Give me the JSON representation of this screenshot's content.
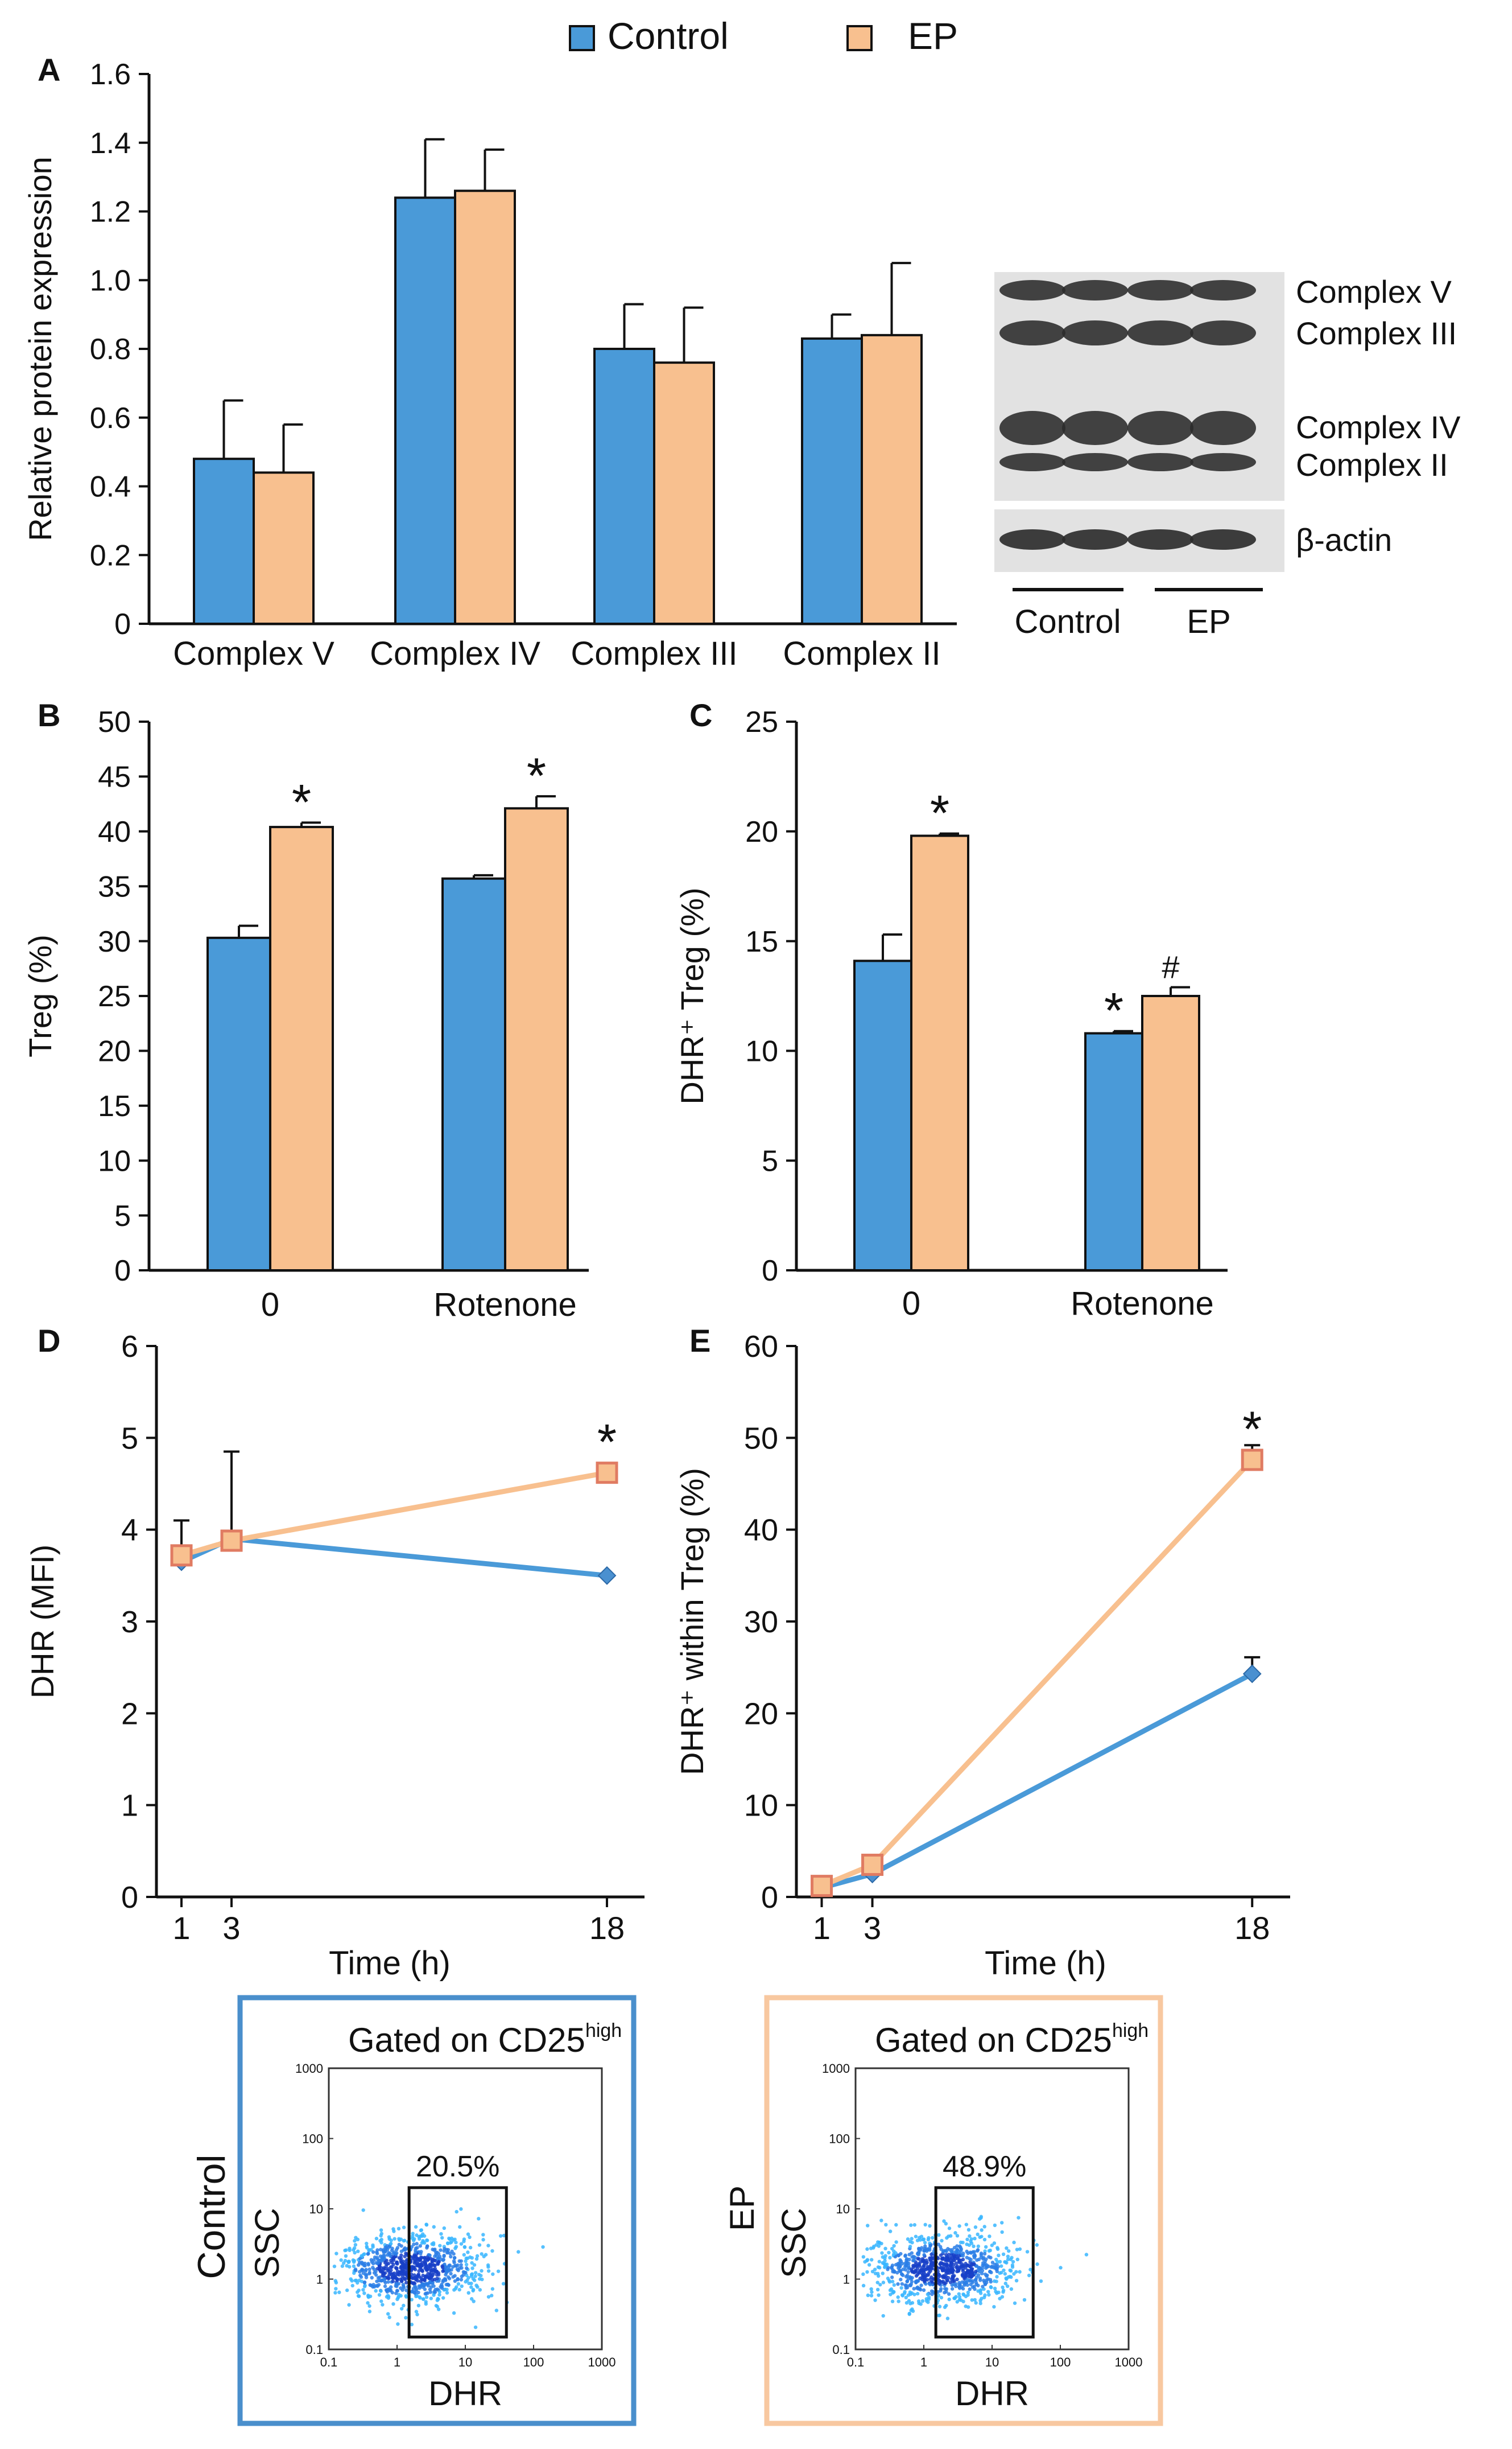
{
  "legend": {
    "control": "Control",
    "ep": "EP",
    "control_color": "#4a9ad8",
    "ep_color": "#f8c08f"
  },
  "colors": {
    "control": "#4a9ad8",
    "ep": "#f8c08f",
    "ep_marker_edge": "#e07b62",
    "control_marker": "#4a90d0",
    "scatter_low": "#1740c8",
    "scatter_high": "#38b6ff"
  },
  "panel_letters": {
    "a": "A",
    "b": "B",
    "c": "C",
    "d": "D",
    "e": "E"
  },
  "western_blot": {
    "bands": [
      "Complex V",
      "Complex III",
      "Complex IV",
      "Complex II"
    ],
    "loading_control": "β-actin",
    "groups": [
      "Control",
      "EP"
    ]
  },
  "chart_data": [
    {
      "id": "A",
      "type": "bar",
      "title": "",
      "xlabel": "",
      "ylabel": "Relative protein expression",
      "ylim": [
        0,
        1.6
      ],
      "yticks": [
        "0",
        "0.2",
        "0.4",
        "0.6",
        "0.8",
        "1.0",
        "1.2",
        "1.4",
        "1.6"
      ],
      "ytick_values": [
        0,
        0.2,
        0.4,
        0.6,
        0.8,
        1.0,
        1.2,
        1.4,
        1.6
      ],
      "categories": [
        "Complex V",
        "Complex IV",
        "Complex III",
        "Complex II"
      ],
      "series": [
        {
          "name": "Control",
          "values": [
            0.48,
            1.24,
            0.8,
            0.83
          ],
          "errors": [
            0.17,
            0.17,
            0.13,
            0.07
          ]
        },
        {
          "name": "EP",
          "values": [
            0.44,
            1.26,
            0.76,
            0.84
          ],
          "errors": [
            0.14,
            0.12,
            0.16,
            0.21
          ]
        }
      ],
      "annotations": []
    },
    {
      "id": "B",
      "type": "bar",
      "title": "",
      "xlabel": "",
      "ylabel": "Treg (%)",
      "ylim": [
        0,
        50
      ],
      "yticks": [
        "0",
        "5",
        "10",
        "15",
        "20",
        "25",
        "30",
        "35",
        "40",
        "45",
        "50"
      ],
      "ytick_values": [
        0,
        5,
        10,
        15,
        20,
        25,
        30,
        35,
        40,
        45,
        50
      ],
      "categories": [
        "0",
        "Rotenone"
      ],
      "series": [
        {
          "name": "Control",
          "values": [
            30.3,
            35.7
          ],
          "errors": [
            1.1,
            0.3
          ]
        },
        {
          "name": "EP",
          "values": [
            40.4,
            42.1
          ],
          "errors": [
            0.4,
            1.1
          ]
        }
      ],
      "annotations": [
        {
          "category": 0,
          "series": 1,
          "text": "*"
        },
        {
          "category": 1,
          "series": 1,
          "text": "*"
        }
      ]
    },
    {
      "id": "C",
      "type": "bar",
      "title": "",
      "xlabel": "",
      "ylabel": "DHR⁺ Treg (%)",
      "ylim": [
        0,
        25
      ],
      "yticks": [
        "0",
        "5",
        "10",
        "15",
        "20",
        "25"
      ],
      "ytick_values": [
        0,
        5,
        10,
        15,
        20,
        25
      ],
      "categories": [
        "0",
        "Rotenone"
      ],
      "series": [
        {
          "name": "Control",
          "values": [
            14.1,
            10.8
          ],
          "errors": [
            1.2,
            0.1
          ]
        },
        {
          "name": "EP",
          "values": [
            19.8,
            12.5
          ],
          "errors": [
            0.1,
            0.4
          ]
        }
      ],
      "annotations": [
        {
          "category": 0,
          "series": 1,
          "text": "*"
        },
        {
          "category": 1,
          "series": 0,
          "text": "*"
        },
        {
          "category": 1,
          "series": 1,
          "text": "#"
        }
      ]
    },
    {
      "id": "D",
      "type": "line",
      "title": "",
      "xlabel": "Time (h)",
      "ylabel": "DHR (MFI)",
      "xlim": [
        0,
        19.5
      ],
      "xticks": [
        "1",
        "3",
        "18"
      ],
      "xtick_values": [
        1,
        3,
        18
      ],
      "ylim": [
        0,
        6
      ],
      "yticks": [
        "0",
        "1",
        "2",
        "3",
        "4",
        "5",
        "6"
      ],
      "ytick_values": [
        0,
        1,
        2,
        3,
        4,
        5,
        6
      ],
      "x": [
        1,
        3,
        18
      ],
      "series": [
        {
          "name": "Control",
          "values": [
            3.65,
            3.9,
            3.5
          ],
          "errors": [
            0.45,
            0.95,
            0.0
          ]
        },
        {
          "name": "EP",
          "values": [
            3.72,
            3.88,
            4.62
          ],
          "errors": [
            0.0,
            0.0,
            0.0
          ]
        }
      ],
      "annotations": [
        {
          "x": 18,
          "y": 4.62,
          "text": "*"
        }
      ]
    },
    {
      "id": "E",
      "type": "line",
      "title": "",
      "xlabel": "Time (h)",
      "ylabel": "DHR⁺ within Treg (%)",
      "xlim": [
        0,
        19.5
      ],
      "xticks": [
        "1",
        "3",
        "18"
      ],
      "xtick_values": [
        1,
        3,
        18
      ],
      "ylim": [
        0,
        60
      ],
      "yticks": [
        "0",
        "10",
        "20",
        "30",
        "40",
        "50",
        "60"
      ],
      "ytick_values": [
        0,
        10,
        20,
        30,
        40,
        50,
        60
      ],
      "x": [
        1,
        3,
        18
      ],
      "series": [
        {
          "name": "Control",
          "values": [
            1.0,
            2.5,
            24.3
          ],
          "errors": [
            0.0,
            0.0,
            1.8
          ]
        },
        {
          "name": "EP",
          "values": [
            1.2,
            3.5,
            47.6
          ],
          "errors": [
            0.0,
            0.0,
            1.6
          ]
        }
      ],
      "annotations": [
        {
          "x": 18,
          "y": 47.6,
          "text": "*"
        }
      ]
    },
    {
      "id": "flow-control",
      "type": "scatter",
      "title": "Gated on CD25",
      "title_superscript": "high",
      "group": "Control",
      "xlabel": "DHR",
      "ylabel": "SSC",
      "scale": "log",
      "xlim": [
        0.1,
        1000
      ],
      "ylim": [
        0.1,
        1000
      ],
      "xticks": [
        "0.1",
        "1",
        "10",
        "100",
        "1000"
      ],
      "yticks": [
        "0.1",
        "1",
        "10",
        "100",
        "1000"
      ],
      "gate": {
        "x_range": [
          1.5,
          40
        ],
        "y_range": [
          0.15,
          20
        ],
        "label": "20.5%"
      },
      "population": {
        "center": [
          1.6,
          1.4
        ],
        "spread_log": [
          0.55,
          0.25
        ],
        "points": 900
      }
    },
    {
      "id": "flow-ep",
      "type": "scatter",
      "title": "Gated on CD25",
      "title_superscript": "high",
      "group": "EP",
      "xlabel": "DHR",
      "ylabel": "SSC",
      "scale": "log",
      "xlim": [
        0.1,
        1000
      ],
      "ylim": [
        0.1,
        1000
      ],
      "xticks": [
        "0.1",
        "1",
        "10",
        "100",
        "1000"
      ],
      "yticks": [
        "0.1",
        "1",
        "10",
        "100",
        "1000"
      ],
      "gate": {
        "x_range": [
          1.5,
          40
        ],
        "y_range": [
          0.15,
          20
        ],
        "label": "48.9%"
      },
      "population": {
        "center": [
          1.9,
          1.4
        ],
        "spread_log": [
          0.55,
          0.25
        ],
        "points": 900
      }
    }
  ]
}
